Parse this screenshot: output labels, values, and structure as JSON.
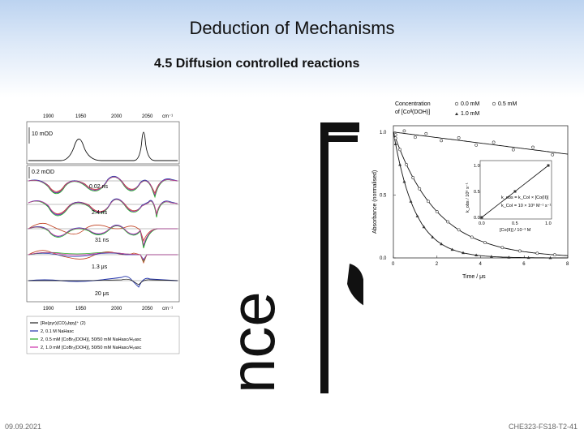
{
  "slide": {
    "title": "Deduction of Mechanisms",
    "subtitle": "4.5 Diffusion controlled reactions"
  },
  "left_figure": {
    "top_ticks": [
      "1900",
      "1950",
      "2000",
      "2050",
      "cm⁻¹"
    ],
    "bottom_ticks": [
      "1900",
      "1950",
      "2000",
      "2050",
      "cm⁻¹"
    ],
    "scale_1": "10 mOD",
    "scale_2": "0.2 mOD",
    "delays": [
      "0.02 ns",
      "2.4 ns",
      "31 ns",
      "1.3 μs",
      "20 μs"
    ],
    "legend": [
      {
        "text": "[Re(pyr)(CO)₃bpy]⁺ (2)",
        "color": "#222222"
      },
      {
        "text": "2, 0.1 M NaHasc",
        "color": "#2233aa"
      },
      {
        "text": "2, 0.5 mM [CoBr₂(DOH)], 50/50 mM NaHasc/H₂asc",
        "color": "#22aa22"
      },
      {
        "text": "2, 1.0 mM [CoBr₂(DOH)], 50/50 mM NaHasc/H₂asc",
        "color": "#cc33aa"
      }
    ]
  },
  "mid_figure": {
    "glyphs": "nce",
    "colors": {
      "dark": "#111111"
    }
  },
  "right_figure": {
    "legend_title_1": "Concentration",
    "legend_title_2": "of [Coᴵᴵ(DOH)]",
    "legend_items": [
      {
        "marker": "circle",
        "text": "0.0 mM"
      },
      {
        "marker": "circle",
        "text": "0.5 mM"
      },
      {
        "marker": "triangle",
        "text": "1.0 mM"
      }
    ],
    "y_axis_label": "Absorbance (normalised)",
    "x_axis_label": "Time / μs",
    "y_ticks": [
      "1.0",
      "0.5",
      "0.0"
    ],
    "x_ticks": [
      "0",
      "2",
      "4",
      "6",
      "8"
    ],
    "inset": {
      "y_label": "k_obs / 10⁶ s⁻¹",
      "x_label": "[Co(II)] / 10⁻³ M",
      "y_ticks": [
        "1.0",
        "0.5",
        "0.0"
      ],
      "x_ticks": [
        "0.0",
        "0.5",
        "1.0"
      ],
      "eq1": "k_obs = k_CoI × [Co(II)]",
      "eq2": "k_CoI = 10 × 10⁹ M⁻¹ s⁻¹"
    }
  },
  "footer": {
    "date": "09.09.2021",
    "code": "CHE323-FS18-T2-41"
  }
}
